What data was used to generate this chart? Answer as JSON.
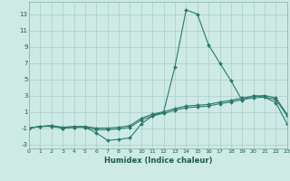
{
  "xlabel": "Humidex (Indice chaleur)",
  "x_values": [
    0,
    1,
    2,
    3,
    4,
    5,
    6,
    7,
    8,
    9,
    10,
    11,
    12,
    13,
    14,
    15,
    16,
    17,
    18,
    19,
    20,
    21,
    22,
    23
  ],
  "line1_y": [
    -1.0,
    -0.8,
    -0.8,
    -1.0,
    -0.9,
    -0.9,
    -1.6,
    -2.5,
    -2.4,
    -2.2,
    -0.5,
    0.5,
    1.0,
    6.5,
    13.5,
    13.0,
    9.2,
    7.0,
    4.8,
    2.4,
    3.0,
    2.8,
    2.1,
    -0.5
  ],
  "line2_y": [
    -1.0,
    -0.8,
    -0.7,
    -1.0,
    -0.9,
    -0.9,
    -1.2,
    -1.2,
    -1.1,
    -0.9,
    0.0,
    0.5,
    0.8,
    1.2,
    1.5,
    1.6,
    1.7,
    2.0,
    2.2,
    2.5,
    2.7,
    2.8,
    2.5,
    0.5
  ],
  "line3_y": [
    -1.0,
    -0.8,
    -0.7,
    -0.9,
    -0.8,
    -0.8,
    -1.0,
    -1.0,
    -0.9,
    -0.7,
    0.2,
    0.7,
    1.0,
    1.4,
    1.7,
    1.8,
    1.9,
    2.2,
    2.4,
    2.7,
    2.9,
    3.0,
    2.7,
    0.7
  ],
  "line_color": "#2a7a6b",
  "bg_color": "#ceeae5",
  "grid_color": "#aaccc8",
  "xlim": [
    0,
    23
  ],
  "ylim": [
    -3.5,
    14.5
  ],
  "yticks": [
    -3,
    -1,
    1,
    3,
    5,
    7,
    9,
    11,
    13
  ],
  "xticks": [
    0,
    1,
    2,
    3,
    4,
    5,
    6,
    7,
    8,
    9,
    10,
    11,
    12,
    13,
    14,
    15,
    16,
    17,
    18,
    19,
    20,
    21,
    22,
    23
  ]
}
